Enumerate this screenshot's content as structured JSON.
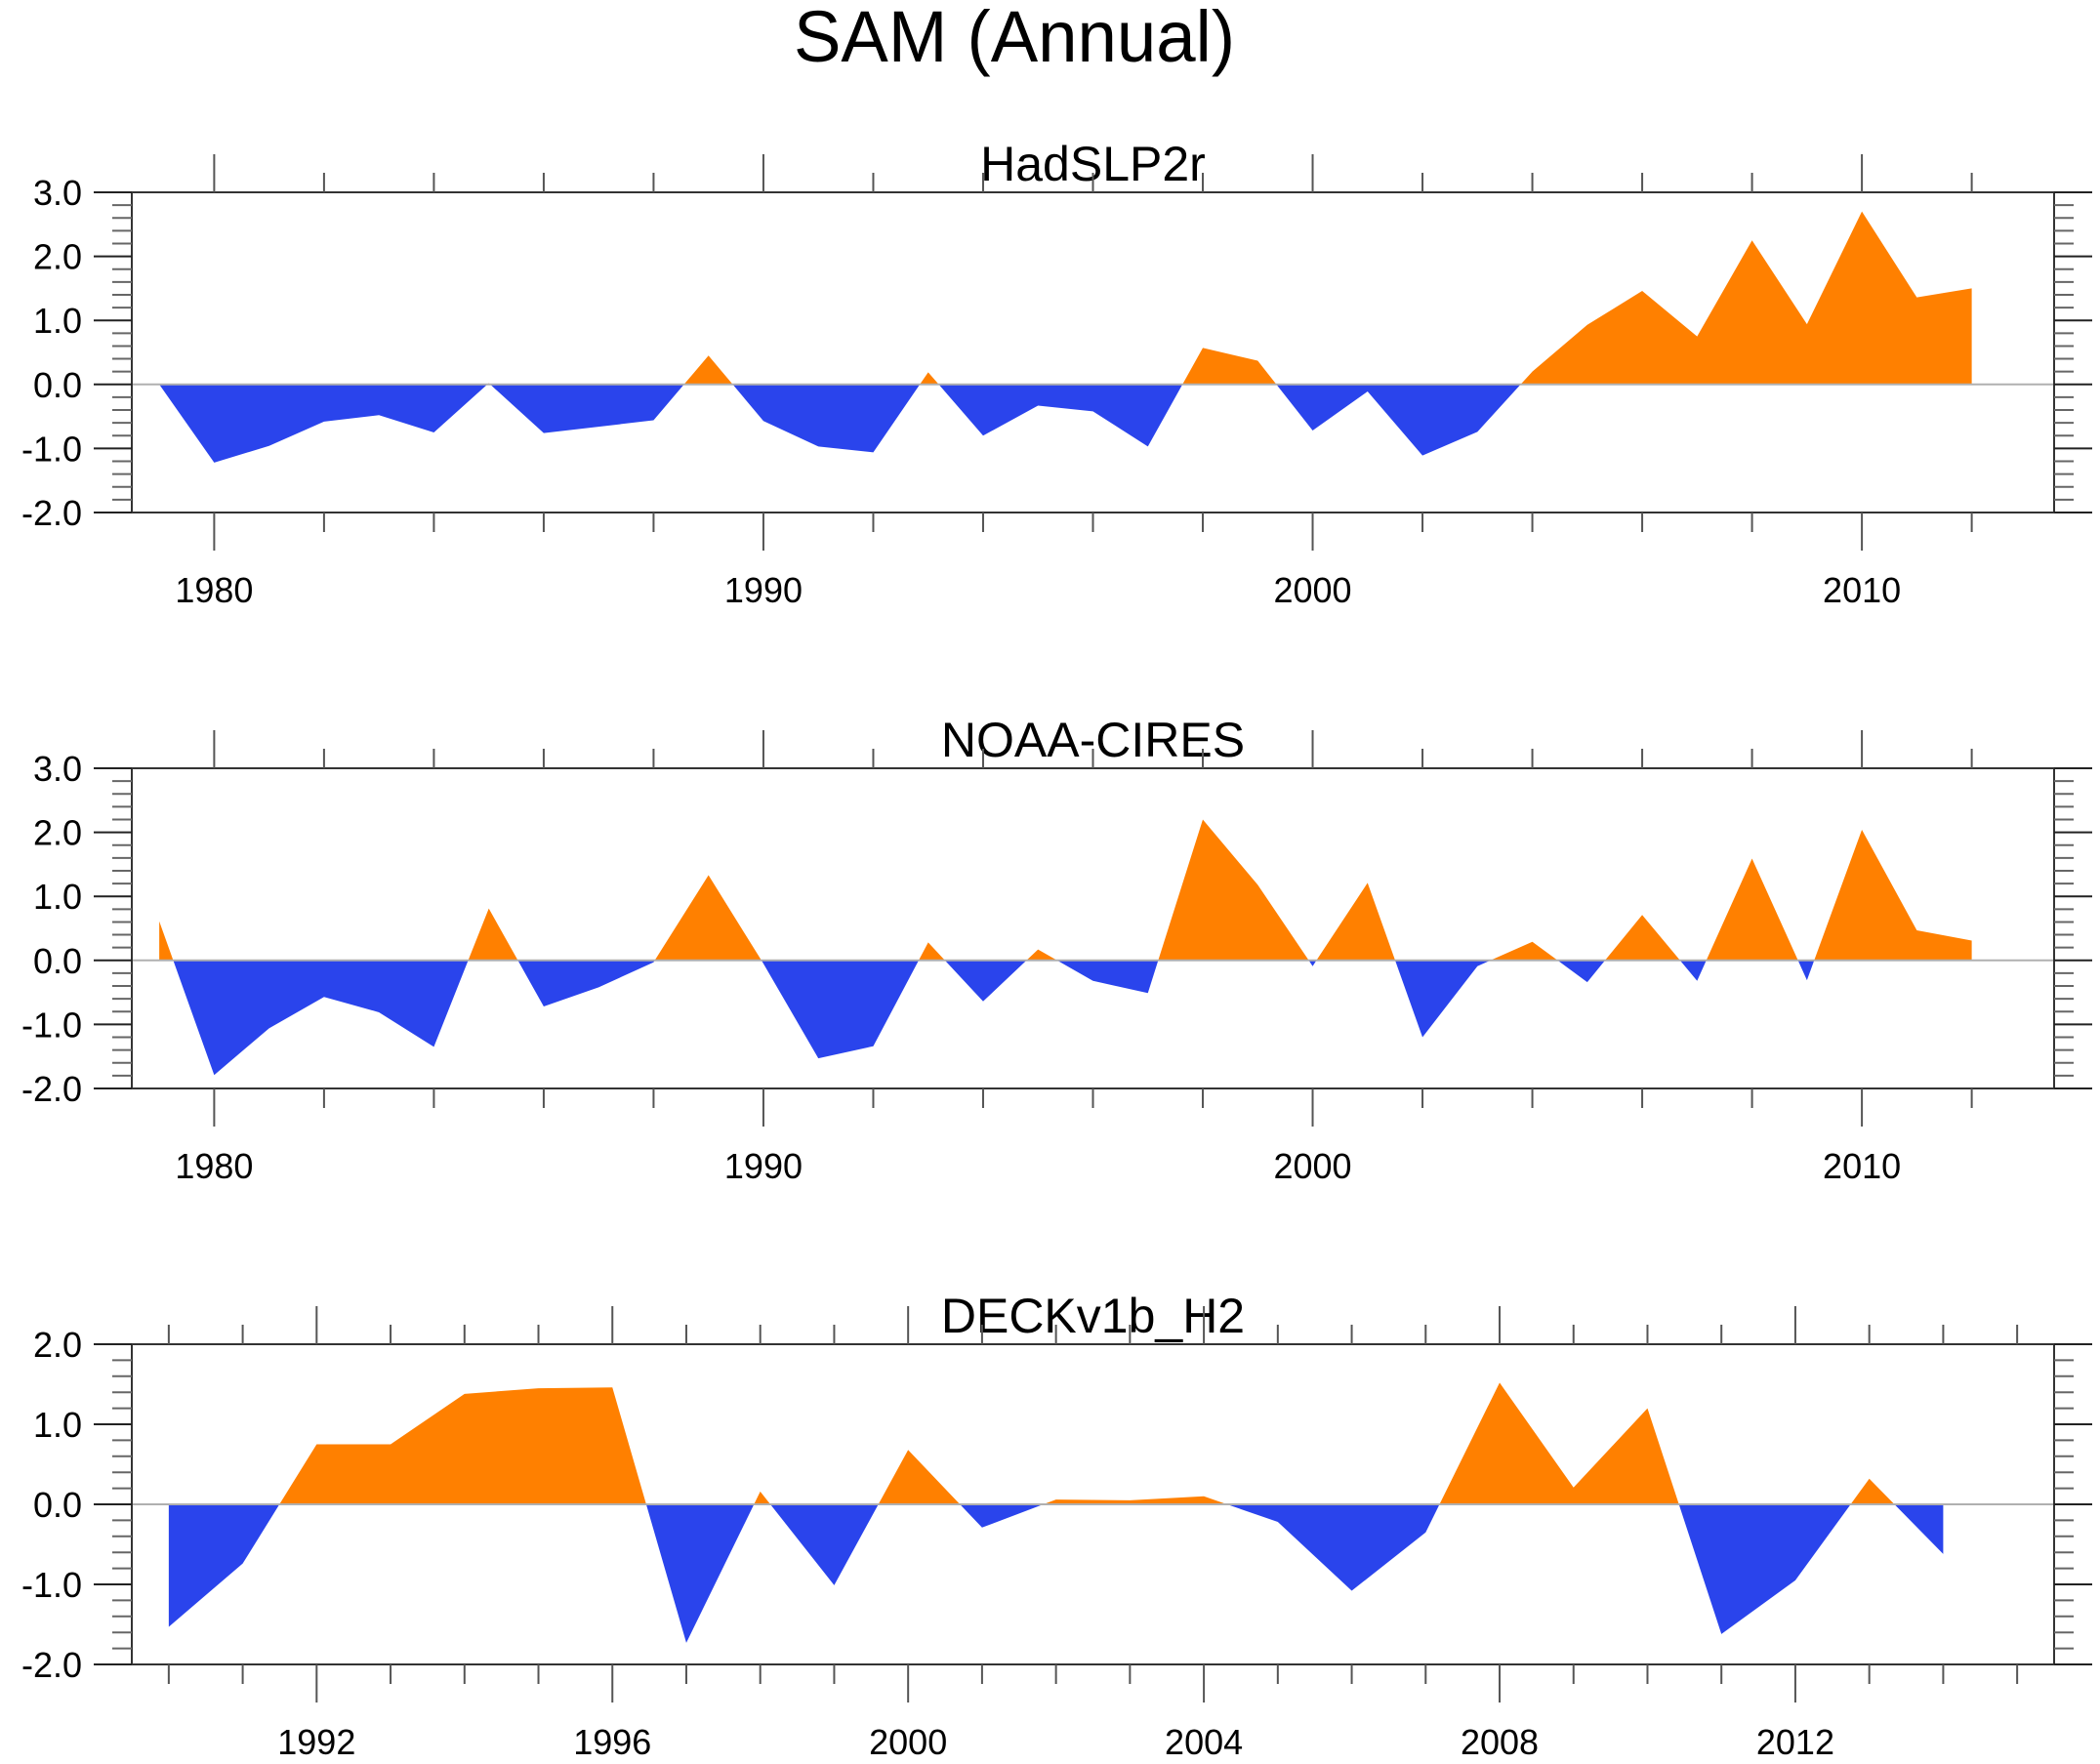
{
  "figure": {
    "title": "SAM (Annual)",
    "colors": {
      "positive": "#FF8000",
      "negative": "#2A44EC",
      "zero_line": "#B0B0B0",
      "axis": "#000000"
    }
  },
  "chart_data": [
    {
      "type": "area",
      "title": "HadSLP2r",
      "xlabel": "",
      "ylabel": "",
      "xlim": [
        1978.5,
        2013.5
      ],
      "ylim": [
        -2.0,
        3.0
      ],
      "x_major_ticks": [
        1980,
        1990,
        2000,
        2010
      ],
      "x_major_labels": [
        "1980",
        "1990",
        "2000",
        "2010"
      ],
      "x_minor_step": 2,
      "y_major_ticks": [
        3.0,
        2.0,
        1.0,
        0.0,
        -1.0,
        -2.0
      ],
      "y_major_labels": [
        "3.0",
        "2.0",
        "1.0",
        "0.0",
        "-1.0",
        "-2.0"
      ],
      "y_minor_step": 0.2,
      "reference_line": 0.0,
      "grid": false,
      "x": [
        1979,
        1980,
        1981,
        1982,
        1983,
        1984,
        1985,
        1986,
        1987,
        1988,
        1989,
        1990,
        1991,
        1992,
        1993,
        1994,
        1995,
        1996,
        1997,
        1998,
        1999,
        2000,
        2001,
        2002,
        2003,
        2004,
        2005,
        2006,
        2007,
        2008,
        2009,
        2010,
        2011,
        2012
      ],
      "values": [
        0.0,
        -1.22,
        -0.96,
        -0.58,
        -0.48,
        -0.75,
        0.02,
        -0.76,
        -0.66,
        -0.56,
        0.45,
        -0.57,
        -0.97,
        -1.06,
        0.19,
        -0.8,
        -0.33,
        -0.42,
        -0.97,
        0.57,
        0.37,
        -0.72,
        -0.11,
        -1.11,
        -0.74,
        0.2,
        0.93,
        1.46,
        0.75,
        2.25,
        0.94,
        2.7,
        1.36,
        1.5
      ]
    },
    {
      "type": "area",
      "title": "NOAA-CIRES",
      "xlabel": "",
      "ylabel": "",
      "xlim": [
        1978.5,
        2013.5
      ],
      "ylim": [
        -2.0,
        3.0
      ],
      "x_major_ticks": [
        1980,
        1990,
        2000,
        2010
      ],
      "x_major_labels": [
        "1980",
        "1990",
        "2000",
        "2010"
      ],
      "x_minor_step": 2,
      "y_major_ticks": [
        3.0,
        2.0,
        1.0,
        0.0,
        -1.0,
        -2.0
      ],
      "y_major_labels": [
        "3.0",
        "2.0",
        "1.0",
        "0.0",
        "-1.0",
        "-2.0"
      ],
      "y_minor_step": 0.2,
      "reference_line": 0.0,
      "grid": false,
      "x": [
        1979,
        1980,
        1981,
        1982,
        1983,
        1984,
        1985,
        1986,
        1987,
        1988,
        1989,
        1990,
        1991,
        1992,
        1993,
        1994,
        1995,
        1996,
        1997,
        1998,
        1999,
        2000,
        2001,
        2002,
        2003,
        2004,
        2005,
        2006,
        2007,
        2008,
        2009,
        2010,
        2011,
        2012
      ],
      "values": [
        0.61,
        -1.79,
        -1.06,
        -0.57,
        -0.81,
        -1.35,
        0.81,
        -0.72,
        -0.42,
        -0.03,
        1.33,
        -0.05,
        -1.53,
        -1.34,
        0.28,
        -0.64,
        0.17,
        -0.32,
        -0.51,
        2.2,
        1.18,
        -0.09,
        1.21,
        -1.2,
        -0.09,
        0.29,
        -0.34,
        0.71,
        -0.32,
        1.59,
        -0.31,
        2.04,
        0.47,
        0.31
      ]
    },
    {
      "type": "area",
      "title": "DECKv1b_H2",
      "xlabel": "",
      "ylabel": "",
      "xlim": [
        1989.5,
        2015.5
      ],
      "ylim": [
        -2.0,
        2.0
      ],
      "x_major_ticks": [
        1992,
        1996,
        2000,
        2004,
        2008,
        2012
      ],
      "x_major_labels": [
        "1992",
        "1996",
        "2000",
        "2004",
        "2008",
        "2012"
      ],
      "x_minor_step": 1,
      "y_major_ticks": [
        2.0,
        1.0,
        0.0,
        -1.0,
        -2.0
      ],
      "y_major_labels": [
        "2.0",
        "1.0",
        "0.0",
        "-1.0",
        "-2.0"
      ],
      "y_minor_step": 0.2,
      "reference_line": 0.0,
      "grid": false,
      "x": [
        1990,
        1991,
        1992,
        1993,
        1994,
        1995,
        1996,
        1997,
        1998,
        1999,
        2000,
        2001,
        2002,
        2003,
        2004,
        2005,
        2006,
        2007,
        2008,
        2009,
        2010,
        2011,
        2012,
        2013,
        2014
      ],
      "values": [
        -1.53,
        -0.74,
        0.75,
        0.75,
        1.38,
        1.45,
        1.46,
        -1.73,
        0.16,
        -1.01,
        0.68,
        -0.29,
        0.06,
        0.05,
        0.1,
        -0.22,
        -1.08,
        -0.35,
        1.52,
        0.21,
        1.2,
        -1.62,
        -0.95,
        0.32,
        -0.62
      ]
    }
  ]
}
